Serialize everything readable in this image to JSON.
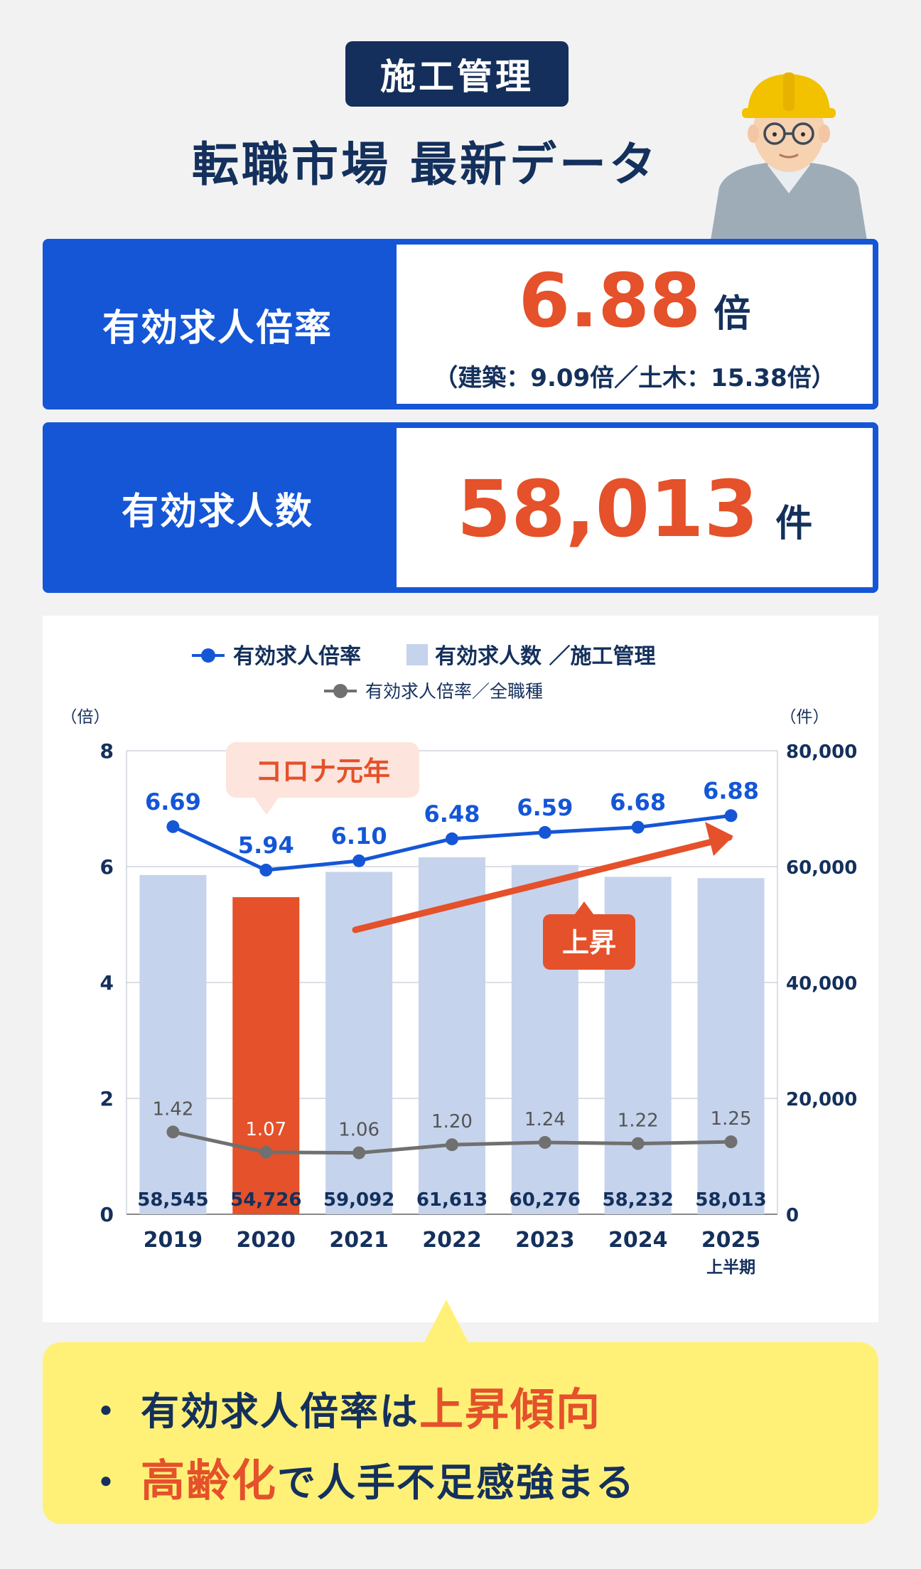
{
  "header": {
    "badge": "施工管理",
    "title": "転職市場 最新データ"
  },
  "metrics": {
    "job_ratio": {
      "label": "有効求人倍率",
      "value": "6.88",
      "unit": "倍",
      "sub": "（建築：9.09倍／土木：15.38倍）"
    },
    "job_openings": {
      "label": "有効求人数",
      "value": "58,013",
      "unit": "件"
    }
  },
  "chart_data": {
    "type": "bar+line",
    "legend": [
      "有効求人倍率",
      "有効求人数 ／施工管理",
      "有効求人倍率／全職種"
    ],
    "categories": [
      "2019",
      "2020",
      "2021",
      "2022",
      "2023",
      "2024",
      "2025"
    ],
    "category_sublabels": [
      "",
      "",
      "",
      "",
      "",
      "",
      "上半期"
    ],
    "bars": {
      "name": "有効求人数 ／施工管理",
      "values": [
        58545,
        54726,
        59092,
        61613,
        60276,
        58232,
        58013
      ],
      "labels": [
        "58,545",
        "54,726",
        "59,092",
        "61,613",
        "60,276",
        "58,232",
        "58,013"
      ],
      "highlight_index": 1
    },
    "lines": [
      {
        "name": "有効求人倍率",
        "values": [
          6.69,
          5.94,
          6.1,
          6.48,
          6.59,
          6.68,
          6.88
        ],
        "labels": [
          "6.69",
          "5.94",
          "6.10",
          "6.48",
          "6.59",
          "6.68",
          "6.88"
        ]
      },
      {
        "name": "有効求人倍率／全職種",
        "values": [
          1.42,
          1.07,
          1.06,
          1.2,
          1.24,
          1.22,
          1.25
        ],
        "labels": [
          "1.42",
          "1.07",
          "1.06",
          "1.20",
          "1.24",
          "1.22",
          "1.25"
        ]
      }
    ],
    "left_axis": {
      "unit": "（倍）",
      "ylim": [
        0,
        8
      ],
      "ticks": [
        "0",
        "2",
        "4",
        "6",
        "8"
      ]
    },
    "right_axis": {
      "unit": "（件）",
      "ylim": [
        0,
        80000
      ],
      "ticks": [
        "0",
        "20,000",
        "40,000",
        "60,000",
        "80,000"
      ]
    },
    "annotations": {
      "covid": "コロナ元年",
      "rise": "上昇"
    },
    "grid": true,
    "colors": {
      "ratio_line": "#1456d6",
      "all_jobs_line": "#707070",
      "bars": "#c5d3ec",
      "highlight_bar": "#e4512a"
    }
  },
  "summary": {
    "line1_pre": "有効求人倍率は",
    "line1_hl": "上昇傾向",
    "line2_hl": "高齢化",
    "line2_post": "で人手不足感強まる",
    "bullet": "・"
  }
}
